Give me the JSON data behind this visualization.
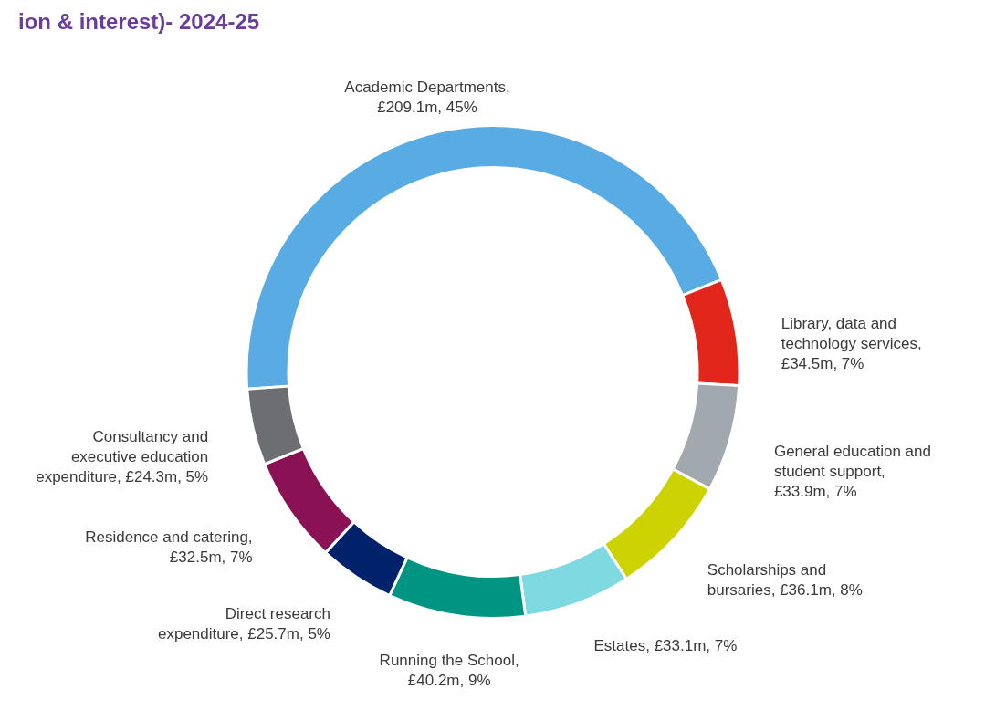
{
  "chart_data": {
    "type": "donut",
    "title": "ion & interest)- 2024-25",
    "categories": [
      "Academic Departments, £209.1m",
      "Library, data and technology services, £34.5m",
      "General education and student support, £33.9m",
      "Scholarships and bursaries, £36.1m",
      "Estates, £33.1m",
      "Running the School, £40.2m",
      "Direct research expenditure, £25.7m",
      "Residence and catering, £32.5m",
      "Consultancy and executive education expenditure, £24.3m"
    ],
    "values": [
      45,
      7,
      7,
      8,
      7,
      9,
      5,
      7,
      5
    ],
    "value_labels": [
      "45%",
      "7%",
      "7%",
      "8%",
      "7%",
      "9%",
      "5%",
      "7%",
      "5%"
    ],
    "colors": [
      "#58abe3",
      "#e3261c",
      "#a2a9ae",
      "#cdd300",
      "#7fd9e0",
      "#009482",
      "#00226a",
      "#8a1254",
      "#6c6e72"
    ],
    "legend": false
  }
}
